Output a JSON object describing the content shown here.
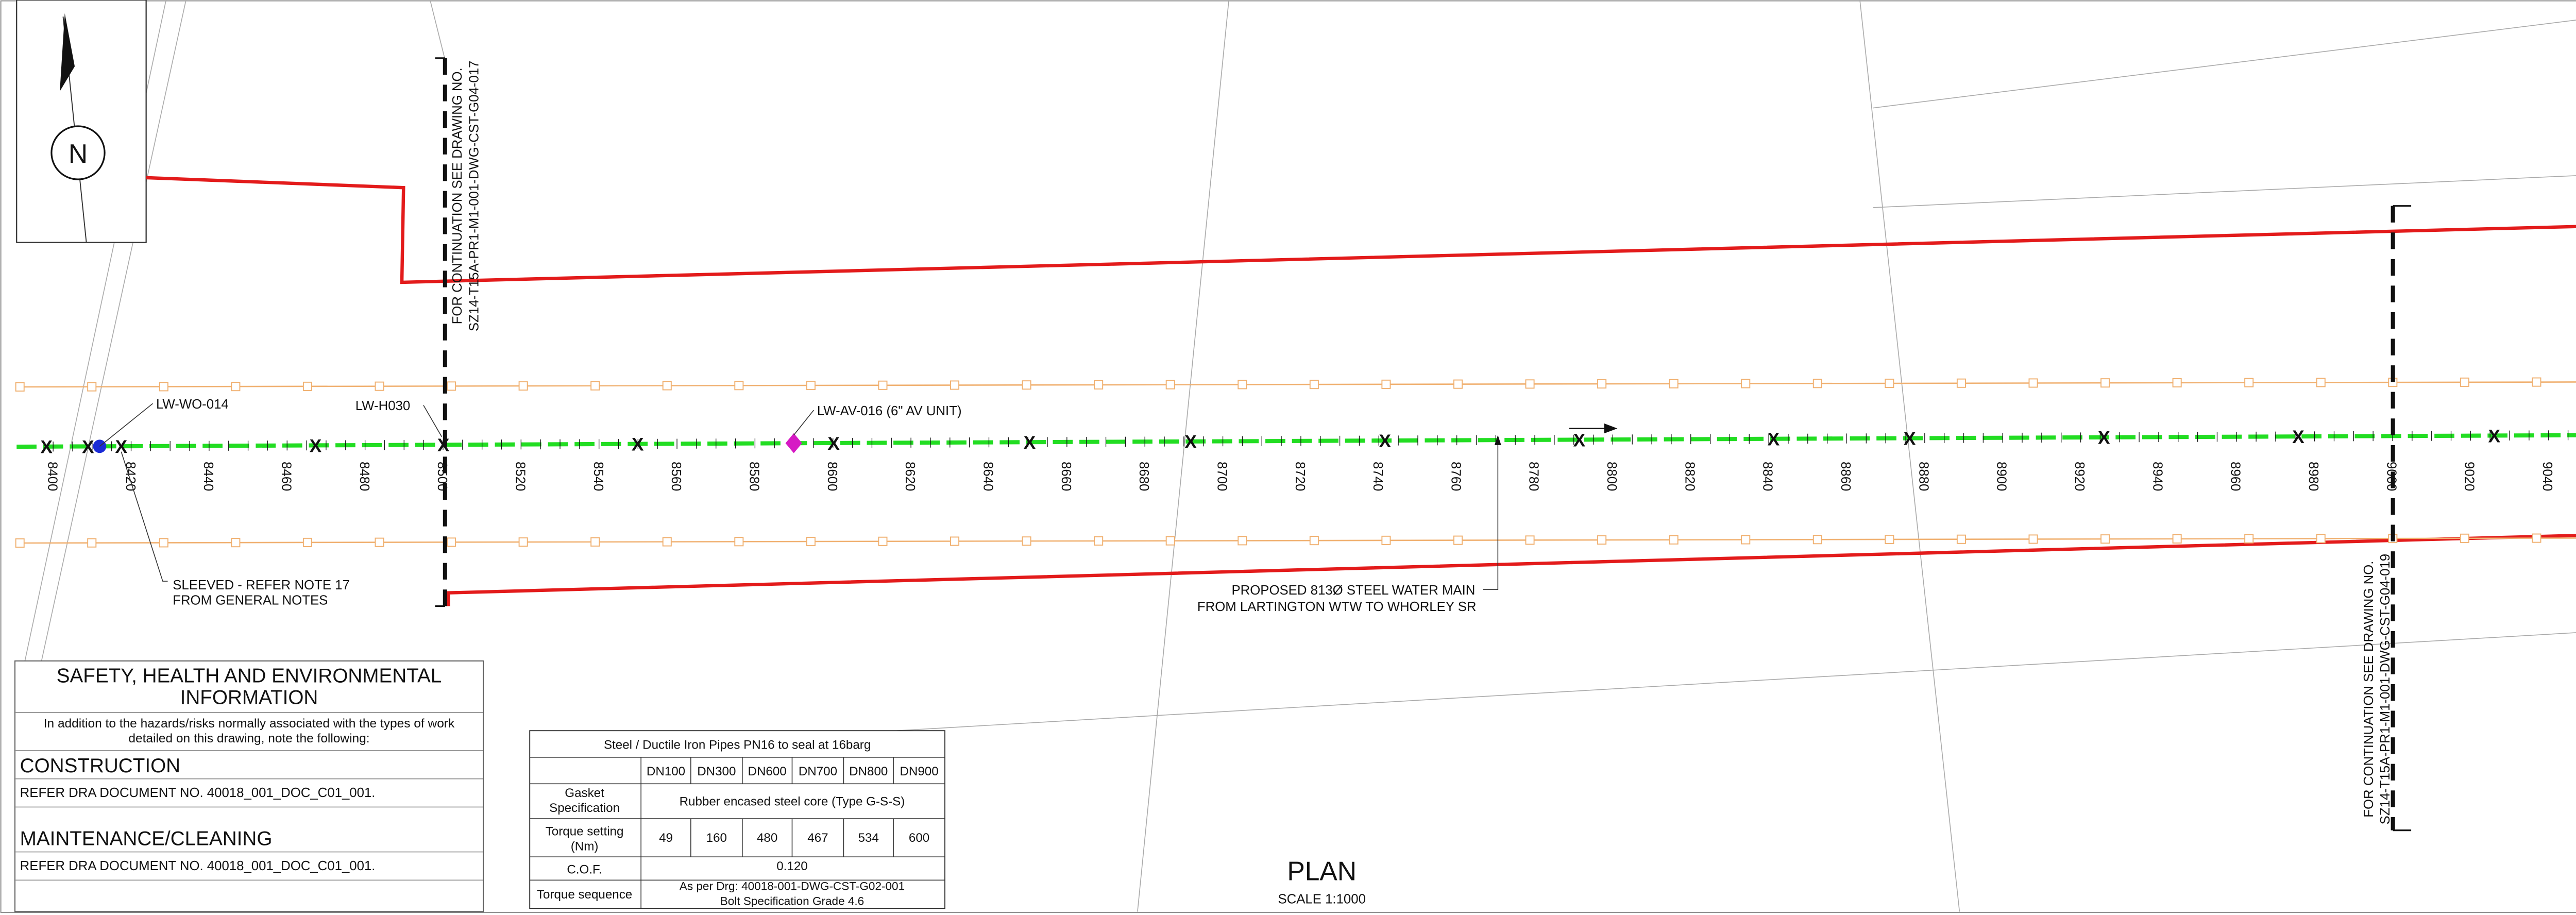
{
  "north": "N",
  "chainages": [
    8400,
    8420,
    8440,
    8460,
    8480,
    8500,
    8520,
    8540,
    8560,
    8580,
    8600,
    8620,
    8640,
    8660,
    8680,
    8700,
    8720,
    8740,
    8760,
    8780,
    8800,
    8820,
    8840,
    8860,
    8880,
    8900,
    8920,
    8940,
    8960,
    8980,
    9000,
    9020,
    9040
  ],
  "labels": {
    "wo": "LW-WO-014",
    "h030": "LW-H030",
    "av": "LW-AV-016 (6\" AV UNIT)",
    "sleeved": [
      "SLEEVED - REFER NOTE 17",
      "FROM GENERAL NOTES"
    ],
    "main": [
      "PROPOSED 813Ø STEEL WATER MAIN",
      "FROM LARTINGTON WTW TO WHORLEY SR"
    ]
  },
  "continuation": [
    {
      "text": "FOR CONTINUATION SEE DRAWING NO.",
      "drawing": "SZ14-T15A-PR1-M1-001-DWG-CST-G04-017"
    },
    {
      "text": "FOR CONTINUATION SEE DRAWING NO.",
      "drawing": "SZ14-T15A-PR1-M1-001-DWG-CST-G04-019"
    }
  ],
  "safety": {
    "title": [
      "SAFETY, HEALTH AND ENVIRONMENTAL",
      "INFORMATION"
    ],
    "intro": [
      "In addition to the hazards/risks normally associated with the types of work",
      "detailed on this drawing, note the following:"
    ],
    "sections": [
      {
        "heading": "CONSTRUCTION",
        "text": "REFER DRA DOCUMENT NO. 40018_001_DOC_C01_001."
      },
      {
        "heading": "MAINTENANCE/CLEANING",
        "text": "REFER DRA DOCUMENT NO. 40018_001_DOC_C01_001."
      }
    ]
  },
  "table": {
    "title": "Steel / Ductile Iron Pipes PN16 to seal at 16barg",
    "columns": [
      "DN100",
      "DN300",
      "DN600",
      "DN700",
      "DN800",
      "DN900"
    ],
    "gasket": {
      "label": [
        "Gasket",
        "Specification"
      ],
      "value": "Rubber encased steel core (Type G-S-S)"
    },
    "torque": {
      "label": [
        "Torque setting",
        "(Nm)"
      ],
      "values": [
        49,
        160,
        480,
        467,
        534,
        600
      ]
    },
    "cof": {
      "label": "C.O.F.",
      "value": "0.120"
    },
    "sequence": {
      "label": "Torque sequence",
      "value": [
        "As per Drg: 40018-001-DWG-CST-G02-001",
        "Bolt Specification Grade 4.6"
      ]
    }
  },
  "plan": {
    "title": "PLAN",
    "scale": "SCALE 1:1000"
  }
}
